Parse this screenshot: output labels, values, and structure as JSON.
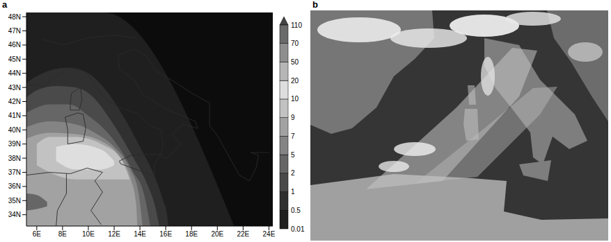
{
  "panel_labels": [
    "a",
    "b"
  ],
  "chart_data": {
    "type": "contour",
    "xlim": [
      5.2,
      24.3
    ],
    "ylim": [
      33.2,
      48.3
    ],
    "xticks": [
      {
        "value": 6,
        "label": "6E"
      },
      {
        "value": 8,
        "label": "8E"
      },
      {
        "value": 10,
        "label": "10E"
      },
      {
        "value": 12,
        "label": "12E"
      },
      {
        "value": 14,
        "label": "14E"
      },
      {
        "value": 16,
        "label": "16E"
      },
      {
        "value": 18,
        "label": "18E"
      },
      {
        "value": 20,
        "label": "20E"
      },
      {
        "value": 22,
        "label": "22E"
      },
      {
        "value": 24,
        "label": "24E"
      }
    ],
    "yticks": [
      {
        "value": 34,
        "label": "34N"
      },
      {
        "value": 35,
        "label": "35N"
      },
      {
        "value": 36,
        "label": "36N"
      },
      {
        "value": 37,
        "label": "37N"
      },
      {
        "value": 38,
        "label": "38N"
      },
      {
        "value": 39,
        "label": "39N"
      },
      {
        "value": 40,
        "label": "40N"
      },
      {
        "value": 41,
        "label": "41N"
      },
      {
        "value": 42,
        "label": "42N"
      },
      {
        "value": 43,
        "label": "43N"
      },
      {
        "value": 44,
        "label": "44N"
      },
      {
        "value": 45,
        "label": "45N"
      },
      {
        "value": 46,
        "label": "46N"
      },
      {
        "value": 47,
        "label": "47N"
      },
      {
        "value": 48,
        "label": "48N"
      }
    ],
    "colorbar": {
      "ticks": [
        0.01,
        0.5,
        1,
        2,
        5,
        7,
        9,
        10,
        20,
        50,
        70,
        110
      ],
      "colors": [
        "#1f1f1f",
        "#303030",
        "#4a4a4a",
        "#666666",
        "#848484",
        "#a2a2a2",
        "#c2c2c2",
        "#dedede",
        "#b6b6b6",
        "#8e8e8e",
        "#6a6a6a",
        "#444444"
      ]
    },
    "contours": [
      {
        "level": 0.01,
        "lon": [
          5.2,
          11.2,
          21.3
        ],
        "low": [
          33.2,
          33.2,
          33.2
        ],
        "high": [
          48.3,
          48.3,
          33.2
        ]
      },
      {
        "level": 0.5,
        "lon": [
          5.2,
          6,
          7,
          8.5,
          10,
          11,
          12,
          13,
          14,
          15,
          15.8,
          16.1,
          16.2
        ],
        "low": [
          33.2,
          33.2,
          33.2,
          33.2,
          33.2,
          33.2,
          33.2,
          33.2,
          33.2,
          33.2,
          33.2,
          33.2,
          33.2
        ],
        "high": [
          43.3,
          43.8,
          44.2,
          44.4,
          44.0,
          43.2,
          42.0,
          40.5,
          38.8,
          37.0,
          35.0,
          34.0,
          33.2
        ]
      },
      {
        "level": 1,
        "lon": [
          5.2,
          6,
          7.5,
          9,
          10.5,
          11.5,
          12.5,
          13.5,
          14.5,
          15.2,
          15.5
        ],
        "low": [
          33.2,
          33.2,
          33.2,
          33.2,
          33.2,
          33.2,
          33.2,
          33.2,
          33.2,
          33.2,
          33.2
        ],
        "high": [
          42.3,
          42.8,
          43.1,
          43.0,
          42.2,
          41.0,
          39.6,
          38.0,
          36.3,
          34.5,
          33.2
        ]
      },
      {
        "level": 2,
        "lon": [
          5.2,
          7,
          8.5,
          10,
          11.5,
          12.5,
          13.5,
          14.3,
          14.8
        ],
        "low": [
          33.2,
          33.2,
          33.2,
          33.2,
          33.2,
          33.2,
          33.2,
          33.2,
          33.2
        ],
        "high": [
          41.2,
          41.8,
          41.8,
          41.0,
          39.8,
          38.6,
          37.0,
          35.5,
          33.2
        ]
      },
      {
        "level": 5,
        "lon": [
          5.2,
          7,
          9,
          10.5,
          12,
          13.2,
          13.9,
          14.2
        ],
        "low": [
          33.2,
          33.2,
          33.2,
          33.2,
          33.2,
          33.2,
          33.2,
          33.2
        ],
        "high": [
          40.2,
          40.6,
          40.4,
          39.8,
          38.8,
          37.3,
          35.5,
          33.2
        ]
      },
      {
        "level": 7,
        "lon": [
          5.2,
          7,
          9,
          11,
          12.5,
          13.3,
          13.7,
          13.8
        ],
        "low": [
          33.2,
          33.2,
          33.2,
          33.2,
          33.2,
          33.2,
          33.2,
          33.2
        ],
        "high": [
          39.4,
          39.8,
          39.7,
          39.2,
          38.0,
          36.5,
          34.8,
          33.2
        ]
      },
      {
        "level": 9,
        "lon": [
          6,
          7,
          9,
          11,
          12.5,
          13.2
        ],
        "low": [
          37.5,
          37.0,
          36.5,
          36.5,
          36.5,
          36.5
        ],
        "high": [
          39.0,
          39.5,
          39.5,
          39.0,
          38.0,
          36.5
        ]
      },
      {
        "level": 10,
        "lon": [
          7.5,
          9,
          11,
          12
        ],
        "low": [
          37.8,
          37.2,
          37.2,
          37.5
        ],
        "high": [
          38.8,
          39.0,
          38.6,
          37.8
        ]
      },
      {
        "level": 2,
        "lon": [
          5.2,
          6,
          6.8
        ],
        "low": [
          34.3,
          34.4,
          34.6
        ],
        "high": [
          35.5,
          35.4,
          34.9
        ]
      }
    ]
  }
}
